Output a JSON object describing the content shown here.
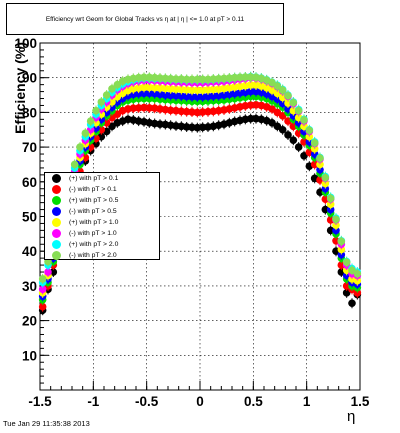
{
  "timestamp": "Tue Jan 29 11:35:38 2013",
  "chart_data": {
    "type": "scatter",
    "title": "Efficiency wrt Geom for Global Tracks vs   η at |  η | <= 1.0 at pT > 0.11",
    "xlabel": "η",
    "ylabel": "Efficiency (%)",
    "xlim": [
      -1.5,
      1.5
    ],
    "ylim": [
      0,
      100
    ],
    "x_ticks": [
      "-1.5",
      "-1",
      "-0.5",
      "0",
      "0.5",
      "1",
      "1.5"
    ],
    "y_ticks": [
      "10",
      "20",
      "30",
      "40",
      "50",
      "60",
      "70",
      "80",
      "90",
      "100"
    ],
    "grid": true,
    "legend_position": "middle-left",
    "x": [
      -1.475,
      -1.425,
      -1.375,
      -1.325,
      -1.275,
      -1.225,
      -1.175,
      -1.125,
      -1.075,
      -1.025,
      -0.975,
      -0.925,
      -0.875,
      -0.825,
      -0.775,
      -0.725,
      -0.675,
      -0.625,
      -0.575,
      -0.525,
      -0.475,
      -0.425,
      -0.375,
      -0.325,
      -0.275,
      -0.225,
      -0.175,
      -0.125,
      -0.075,
      -0.025,
      0.025,
      0.075,
      0.125,
      0.175,
      0.225,
      0.275,
      0.325,
      0.375,
      0.425,
      0.475,
      0.525,
      0.575,
      0.625,
      0.675,
      0.725,
      0.775,
      0.825,
      0.875,
      0.925,
      0.975,
      1.025,
      1.075,
      1.125,
      1.175,
      1.225,
      1.275,
      1.325,
      1.375,
      1.425,
      1.475
    ],
    "series": [
      {
        "name": "(+) with pT > 0.1",
        "color": "#000000",
        "values": [
          23,
          29,
          34,
          40,
          47,
          52,
          57,
          62,
          66,
          69,
          71,
          73,
          74.5,
          76,
          77,
          77.5,
          78,
          77.8,
          77.5,
          77.3,
          77,
          76.8,
          76.6,
          76.5,
          76.3,
          76.1,
          76,
          75.8,
          75.7,
          75.6,
          75.7,
          75.8,
          76,
          76.3,
          76.6,
          77,
          77.4,
          77.7,
          78,
          78.2,
          78.2,
          78,
          77.6,
          77,
          76,
          75,
          73.5,
          72,
          70,
          67.5,
          64.5,
          61,
          57,
          52,
          46,
          40,
          34,
          28,
          25,
          27.5
        ]
      },
      {
        "name": "(-) with pT > 0.1",
        "color": "#ff0000",
        "values": [
          24,
          30,
          36,
          41,
          48,
          53,
          58,
          63,
          67,
          70,
          72.5,
          75,
          77,
          78.5,
          79.5,
          80.5,
          81,
          81.2,
          81.3,
          81.4,
          81.3,
          81.2,
          81,
          80.8,
          80.6,
          80.5,
          80.3,
          80.2,
          80.1,
          80,
          80.1,
          80.2,
          80.3,
          80.5,
          80.7,
          81,
          81.3,
          81.6,
          81.9,
          82.1,
          82.2,
          82,
          81.6,
          81,
          80,
          79,
          77.5,
          76,
          74,
          71.5,
          68.5,
          65,
          60.5,
          55,
          49,
          43,
          36,
          30,
          29,
          28
        ]
      },
      {
        "name": "(+) with pT > 0.5",
        "color": "#00dd00",
        "values": [
          26,
          31,
          37,
          43,
          49,
          55,
          60,
          65,
          69,
          72,
          74.5,
          77,
          79,
          80.5,
          82,
          83,
          83.5,
          83.8,
          84,
          84,
          84,
          84,
          83.8,
          83.7,
          83.6,
          83.5,
          83.4,
          83.3,
          83.2,
          83.2,
          83.2,
          83.3,
          83.4,
          83.5,
          83.6,
          83.8,
          84,
          84.2,
          84.4,
          84.6,
          84.6,
          84.4,
          84,
          83.3,
          82.5,
          81.5,
          80,
          78,
          76,
          73.5,
          70.5,
          67,
          62.5,
          57,
          51,
          45,
          38,
          32,
          30,
          29.5
        ]
      },
      {
        "name": "(-) with pT > 0.5",
        "color": "#0000ff",
        "values": [
          27,
          32,
          38,
          44,
          50,
          56,
          61,
          66,
          70,
          73,
          75.5,
          78,
          80,
          81.5,
          83,
          84,
          84.8,
          85.2,
          85.4,
          85.5,
          85.5,
          85.4,
          85.2,
          85,
          84.9,
          84.8,
          84.7,
          84.6,
          84.5,
          84.5,
          84.5,
          84.6,
          84.7,
          84.8,
          85,
          85.2,
          85.4,
          85.6,
          85.8,
          86,
          86,
          85.8,
          85.3,
          84.6,
          83.8,
          82.6,
          81,
          79,
          77,
          74.5,
          71.5,
          68,
          63.5,
          58,
          52,
          46,
          39,
          33,
          31,
          30.5
        ]
      },
      {
        "name": "(+) with pT > 1.0",
        "color": "#ffff00",
        "values": [
          28,
          33,
          39,
          45,
          51,
          57,
          62,
          67,
          71,
          74,
          77,
          79.5,
          81.5,
          83,
          84.5,
          85.5,
          86.3,
          86.8,
          87,
          87.2,
          87.2,
          87.1,
          87,
          86.9,
          86.8,
          86.7,
          86.6,
          86.5,
          86.4,
          86.4,
          86.4,
          86.5,
          86.6,
          86.7,
          86.9,
          87.1,
          87.3,
          87.5,
          87.7,
          87.9,
          87.9,
          87.6,
          87.1,
          86.4,
          85.5,
          84.3,
          82.7,
          80.5,
          78.5,
          76,
          73,
          69.5,
          65,
          59.5,
          53.5,
          47.5,
          40.5,
          34.5,
          32,
          31.5
        ]
      },
      {
        "name": "(-) with pT > 1.0",
        "color": "#ff00ff",
        "values": [
          29,
          34,
          40,
          46,
          52,
          58,
          63,
          68,
          72,
          75,
          78.5,
          81,
          83,
          85,
          86.5,
          87.5,
          88.3,
          88.8,
          89.1,
          89.3,
          89.3,
          89.2,
          89.1,
          89,
          88.9,
          88.8,
          88.7,
          88.7,
          88.6,
          88.6,
          88.6,
          88.7,
          88.8,
          88.9,
          89,
          89.2,
          89.4,
          89.6,
          89.8,
          90,
          89.9,
          89.6,
          89.1,
          88.4,
          87.4,
          86.2,
          84.6,
          82.5,
          80.3,
          77.5,
          74.5,
          71,
          66.5,
          61,
          55,
          49,
          42,
          36,
          33.5,
          33
        ]
      },
      {
        "name": "(+) with pT > 2.0",
        "color": "#00ffff",
        "values": [
          31,
          36,
          41,
          47,
          53,
          59,
          64,
          69,
          73,
          76.5,
          79.5,
          82,
          84,
          85.8,
          87.2,
          88.2,
          88.9,
          89.4,
          89.7,
          89.9,
          89.9,
          89.8,
          89.8,
          89.7,
          89.6,
          89.5,
          89.5,
          89.4,
          89.4,
          89.4,
          89.4,
          89.4,
          89.5,
          89.6,
          89.7,
          89.8,
          90,
          90.1,
          90.2,
          90.3,
          90.2,
          89.9,
          89.4,
          88.7,
          87.8,
          86.6,
          85,
          83,
          80.8,
          78,
          75,
          71.5,
          67,
          61.5,
          55.5,
          49.5,
          43,
          37,
          35,
          34
        ]
      },
      {
        "name": "(-) with pT > 2.0",
        "color": "#88dd55",
        "values": [
          32,
          37,
          42,
          48,
          54,
          60,
          65,
          70,
          74,
          77.5,
          80.5,
          83,
          85,
          86.8,
          88,
          89,
          89.5,
          89.8,
          90,
          90.1,
          90.1,
          90,
          89.9,
          89.8,
          89.7,
          89.6,
          89.6,
          89.5,
          89.5,
          89.5,
          89.5,
          89.5,
          89.6,
          89.7,
          89.8,
          89.9,
          90,
          90.1,
          90.2,
          90.2,
          90.1,
          89.8,
          89.3,
          88.6,
          87.6,
          86.4,
          84.8,
          82.8,
          80.5,
          77.8,
          74.8,
          71.2,
          66.8,
          61.2,
          55.2,
          49.2,
          42.8,
          36.8,
          34.5,
          33.5
        ]
      }
    ]
  }
}
